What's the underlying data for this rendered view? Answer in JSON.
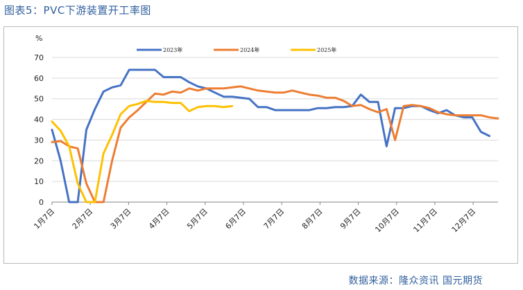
{
  "header": {
    "title": "图表5：PVC下游装置开工率图"
  },
  "footer": {
    "source": "数据来源：隆众资讯   国元期货"
  },
  "chart_data": {
    "type": "line",
    "unit_label": "%",
    "ylim": [
      0,
      70
    ],
    "yticks": [
      0,
      10,
      20,
      30,
      40,
      50,
      60,
      70
    ],
    "x_tick_labels": [
      "1月7日",
      "2月7日",
      "3月7日",
      "4月7日",
      "5月7日",
      "6月7日",
      "7月7日",
      "8月7日",
      "9月7日",
      "10月7日",
      "11月7日",
      "12月7日"
    ],
    "legend_position": "top",
    "grid": "horizontal",
    "series": [
      {
        "name": "2023年",
        "color": "#4472c4",
        "values": [
          35,
          20,
          0,
          0,
          35,
          45,
          53.5,
          55.5,
          56.5,
          64,
          64,
          64,
          64,
          60.5,
          60.5,
          60.5,
          58,
          56,
          55,
          53,
          51,
          51,
          50.5,
          50,
          46,
          46,
          44.5,
          44.5,
          44.5,
          44.5,
          44.5,
          45.5,
          45.5,
          46,
          46,
          46.5,
          52,
          48.5,
          48.5,
          27,
          45.5,
          45.5,
          46.5,
          46.5,
          44.5,
          43,
          44.5,
          42,
          41,
          41,
          34,
          32
        ]
      },
      {
        "name": "2024年",
        "color": "#ed7d31",
        "values": [
          29,
          29.5,
          27,
          26,
          9,
          0,
          0,
          20,
          36,
          41,
          44.5,
          48.5,
          52.5,
          52,
          53.5,
          53,
          55,
          54,
          55,
          55,
          55,
          55.5,
          56,
          55,
          54,
          53.5,
          53,
          53,
          54,
          53,
          52,
          51.5,
          50.5,
          50.5,
          49,
          46.5,
          47,
          45,
          43.5,
          45,
          30,
          46.5,
          47,
          46.5,
          45.5,
          43.5,
          42.5,
          42,
          42,
          42,
          42,
          41,
          40.5
        ]
      },
      {
        "name": "2025年",
        "color": "#ffc000",
        "values": [
          39,
          34.5,
          27,
          9,
          0,
          0,
          23.5,
          32.5,
          42.5,
          46.5,
          47.5,
          49,
          48.5,
          48.5,
          48,
          48,
          44,
          46,
          46.5,
          46.5,
          46,
          46.5
        ]
      }
    ]
  }
}
